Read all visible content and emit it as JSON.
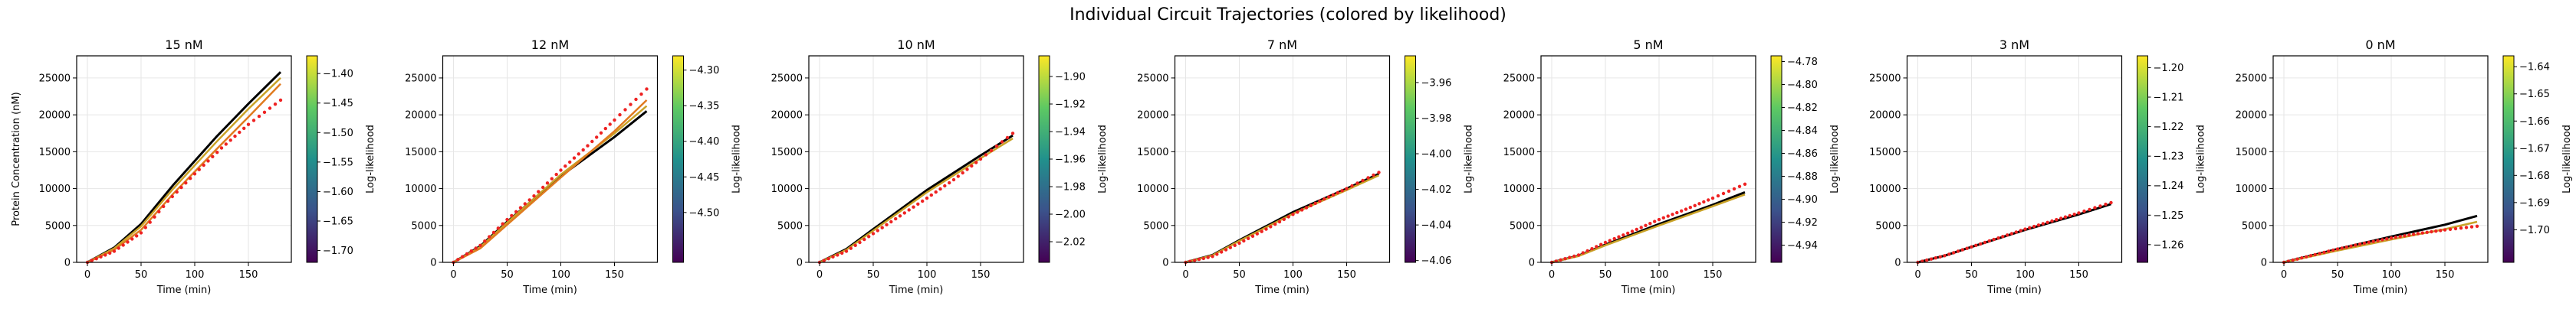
{
  "figure": {
    "title": "Individual Circuit Trajectories (colored by likelihood)",
    "ylabel": "Protein Concentration (nM)",
    "colorbar_label": "Log-likelihood"
  },
  "chart_data": [
    {
      "type": "line",
      "title": "15 nM",
      "xlabel": "Time (min)",
      "ylabel": "Protein Concentration (nM)",
      "xlim": [
        -10,
        190
      ],
      "ylim": [
        0,
        28000
      ],
      "xticks": [
        0,
        50,
        100,
        150
      ],
      "yticks": [
        0,
        5000,
        10000,
        15000,
        20000,
        25000
      ],
      "grid": true,
      "series": [
        {
          "values": [
            [
              0,
              0
            ],
            [
              25,
              2000
            ],
            [
              50,
              5200
            ],
            [
              80,
              10500
            ],
            [
              120,
              17000
            ],
            [
              150,
              21500
            ],
            [
              180,
              25800
            ]
          ]
        },
        {
          "values": [
            [
              0,
              0
            ],
            [
              25,
              1900
            ],
            [
              50,
              4900
            ],
            [
              80,
              10000
            ],
            [
              120,
              16300
            ],
            [
              150,
              20800
            ],
            [
              180,
              25000
            ]
          ]
        },
        {
          "values": [
            [
              0,
              0
            ],
            [
              25,
              1700
            ],
            [
              50,
              4400
            ],
            [
              80,
              9300
            ],
            [
              120,
              15300
            ],
            [
              150,
              19700
            ],
            [
              180,
              24200
            ]
          ]
        }
      ],
      "observed": [
        [
          0,
          0
        ],
        [
          25,
          1500
        ],
        [
          50,
          4000
        ],
        [
          75,
          8300
        ],
        [
          100,
          12000
        ],
        [
          125,
          15500
        ],
        [
          150,
          18700
        ],
        [
          180,
          22000
        ]
      ],
      "colorbar": {
        "min": -1.72,
        "max": -1.37,
        "ticks": [
          -1.7,
          -1.65,
          -1.6,
          -1.55,
          -1.5,
          -1.45,
          -1.4
        ],
        "label": "Log-likelihood"
      }
    },
    {
      "type": "line",
      "title": "12 nM",
      "xlabel": "Time (min)",
      "ylabel": "",
      "xlim": [
        -10,
        190
      ],
      "ylim": [
        0,
        28000
      ],
      "xticks": [
        0,
        50,
        100,
        150
      ],
      "yticks": [
        0,
        5000,
        10000,
        15000,
        20000,
        25000
      ],
      "grid": true,
      "series": [
        {
          "values": [
            [
              0,
              0
            ],
            [
              25,
              2200
            ],
            [
              50,
              5500
            ],
            [
              100,
              11700
            ],
            [
              150,
              17000
            ],
            [
              180,
              20500
            ]
          ]
        },
        {
          "values": [
            [
              0,
              0
            ],
            [
              25,
              2100
            ],
            [
              50,
              5400
            ],
            [
              100,
              11900
            ],
            [
              150,
              17500
            ],
            [
              180,
              21200
            ]
          ]
        },
        {
          "values": [
            [
              0,
              0
            ],
            [
              25,
              1900
            ],
            [
              50,
              5100
            ],
            [
              100,
              11500
            ],
            [
              150,
              17800
            ],
            [
              180,
              22000
            ]
          ]
        }
      ],
      "observed": [
        [
          0,
          0
        ],
        [
          25,
          2300
        ],
        [
          50,
          5800
        ],
        [
          75,
          9000
        ],
        [
          100,
          12500
        ],
        [
          125,
          15800
        ],
        [
          150,
          19300
        ],
        [
          180,
          23500
        ]
      ],
      "colorbar": {
        "min": -4.57,
        "max": -4.28,
        "ticks": [
          -4.5,
          -4.45,
          -4.4,
          -4.35,
          -4.3
        ],
        "label": "Log-likelihood"
      }
    },
    {
      "type": "line",
      "title": "10 nM",
      "xlabel": "Time (min)",
      "ylabel": "",
      "xlim": [
        -10,
        190
      ],
      "ylim": [
        0,
        28000
      ],
      "xticks": [
        0,
        50,
        100,
        150
      ],
      "yticks": [
        0,
        5000,
        10000,
        15000,
        20000,
        25000
      ],
      "grid": true,
      "series": [
        {
          "values": [
            [
              0,
              0
            ],
            [
              25,
              1800
            ],
            [
              50,
              4500
            ],
            [
              100,
              9800
            ],
            [
              150,
              14500
            ],
            [
              180,
              17200
            ]
          ]
        },
        {
          "values": [
            [
              0,
              0
            ],
            [
              25,
              1700
            ],
            [
              50,
              4300
            ],
            [
              100,
              9500
            ],
            [
              150,
              14100
            ],
            [
              180,
              16800
            ]
          ]
        }
      ],
      "observed": [
        [
          0,
          0
        ],
        [
          25,
          1500
        ],
        [
          50,
          3900
        ],
        [
          75,
          6300
        ],
        [
          100,
          8700
        ],
        [
          125,
          11200
        ],
        [
          150,
          14000
        ],
        [
          180,
          17500
        ]
      ],
      "colorbar": {
        "min": -2.035,
        "max": -1.885,
        "ticks": [
          -2.02,
          -2.0,
          -1.98,
          -1.96,
          -1.94,
          -1.92,
          -1.9
        ],
        "label": "Log-likelihood"
      }
    },
    {
      "type": "line",
      "title": "7 nM",
      "xlabel": "Time (min)",
      "ylabel": "",
      "xlim": [
        -10,
        190
      ],
      "ylim": [
        0,
        28000
      ],
      "xticks": [
        0,
        50,
        100,
        150
      ],
      "yticks": [
        0,
        5000,
        10000,
        15000,
        20000,
        25000
      ],
      "grid": true,
      "series": [
        {
          "values": [
            [
              0,
              0
            ],
            [
              25,
              1000
            ],
            [
              50,
              3000
            ],
            [
              100,
              6800
            ],
            [
              150,
              10000
            ],
            [
              180,
              12000
            ]
          ]
        },
        {
          "values": [
            [
              0,
              0
            ],
            [
              25,
              950
            ],
            [
              50,
              2900
            ],
            [
              100,
              6600
            ],
            [
              150,
              9800
            ],
            [
              180,
              11800
            ]
          ]
        }
      ],
      "observed": [
        [
          0,
          0
        ],
        [
          25,
          800
        ],
        [
          50,
          2600
        ],
        [
          75,
          4500
        ],
        [
          100,
          6500
        ],
        [
          125,
          8300
        ],
        [
          150,
          10000
        ],
        [
          180,
          12200
        ]
      ],
      "colorbar": {
        "min": -4.061,
        "max": -3.945,
        "ticks": [
          -4.06,
          -4.04,
          -4.02,
          -4.0,
          -3.98,
          -3.96
        ],
        "label": "Log-likelihood"
      }
    },
    {
      "type": "line",
      "title": "5 nM",
      "xlabel": "Time (min)",
      "ylabel": "",
      "xlim": [
        -10,
        190
      ],
      "ylim": [
        0,
        28000
      ],
      "xticks": [
        0,
        50,
        100,
        150
      ],
      "yticks": [
        0,
        5000,
        10000,
        15000,
        20000,
        25000
      ],
      "grid": true,
      "series": [
        {
          "values": [
            [
              0,
              0
            ],
            [
              25,
              900
            ],
            [
              50,
              2400
            ],
            [
              100,
              5200
            ],
            [
              150,
              7800
            ],
            [
              180,
              9500
            ]
          ]
        },
        {
          "values": [
            [
              0,
              0
            ],
            [
              25,
              850
            ],
            [
              50,
              2300
            ],
            [
              100,
              5000
            ],
            [
              150,
              7600
            ],
            [
              180,
              9200
            ]
          ]
        }
      ],
      "observed": [
        [
          0,
          0
        ],
        [
          25,
          1000
        ],
        [
          50,
          2700
        ],
        [
          75,
          4200
        ],
        [
          100,
          5800
        ],
        [
          125,
          7200
        ],
        [
          150,
          8700
        ],
        [
          180,
          10600
        ]
      ],
      "colorbar": {
        "min": -4.955,
        "max": -4.775,
        "ticks": [
          -4.94,
          -4.92,
          -4.9,
          -4.88,
          -4.86,
          -4.84,
          -4.82,
          -4.8,
          -4.78
        ],
        "label": "Log-likelihood"
      }
    },
    {
      "type": "line",
      "title": "3 nM",
      "xlabel": "Time (min)",
      "ylabel": "",
      "xlim": [
        -10,
        190
      ],
      "ylim": [
        0,
        28000
      ],
      "xticks": [
        0,
        50,
        100,
        150
      ],
      "yticks": [
        0,
        5000,
        10000,
        15000,
        20000,
        25000
      ],
      "grid": true,
      "series": [
        {
          "values": [
            [
              0,
              0
            ],
            [
              25,
              900
            ],
            [
              50,
              2100
            ],
            [
              100,
              4400
            ],
            [
              150,
              6500
            ],
            [
              180,
              7900
            ]
          ]
        }
      ],
      "observed": [
        [
          0,
          0
        ],
        [
          25,
          900
        ],
        [
          50,
          2100
        ],
        [
          75,
          3300
        ],
        [
          100,
          4500
        ],
        [
          125,
          5600
        ],
        [
          150,
          6700
        ],
        [
          180,
          8100
        ]
      ],
      "colorbar": {
        "min": -1.266,
        "max": -1.196,
        "ticks": [
          -1.26,
          -1.25,
          -1.24,
          -1.23,
          -1.22,
          -1.21,
          -1.2
        ],
        "label": "Log-likelihood"
      }
    },
    {
      "type": "line",
      "title": "0 nM",
      "xlabel": "Time (min)",
      "ylabel": "",
      "xlim": [
        -10,
        190
      ],
      "ylim": [
        0,
        28000
      ],
      "xticks": [
        0,
        50,
        100,
        150
      ],
      "yticks": [
        0,
        5000,
        10000,
        15000,
        20000,
        25000
      ],
      "grid": true,
      "series": [
        {
          "values": [
            [
              0,
              0
            ],
            [
              50,
              1800
            ],
            [
              100,
              3500
            ],
            [
              150,
              5100
            ],
            [
              180,
              6300
            ]
          ]
        },
        {
          "values": [
            [
              0,
              0
            ],
            [
              50,
              1600
            ],
            [
              100,
              3100
            ],
            [
              150,
              4500
            ],
            [
              180,
              5500
            ]
          ]
        }
      ],
      "observed": [
        [
          0,
          0
        ],
        [
          25,
          900
        ],
        [
          50,
          1800
        ],
        [
          75,
          2600
        ],
        [
          100,
          3300
        ],
        [
          125,
          3900
        ],
        [
          150,
          4400
        ],
        [
          180,
          4900
        ]
      ],
      "colorbar": {
        "min": -1.712,
        "max": -1.636,
        "ticks": [
          -1.7,
          -1.69,
          -1.68,
          -1.67,
          -1.66,
          -1.65,
          -1.64
        ],
        "label": "Log-likelihood"
      }
    }
  ]
}
